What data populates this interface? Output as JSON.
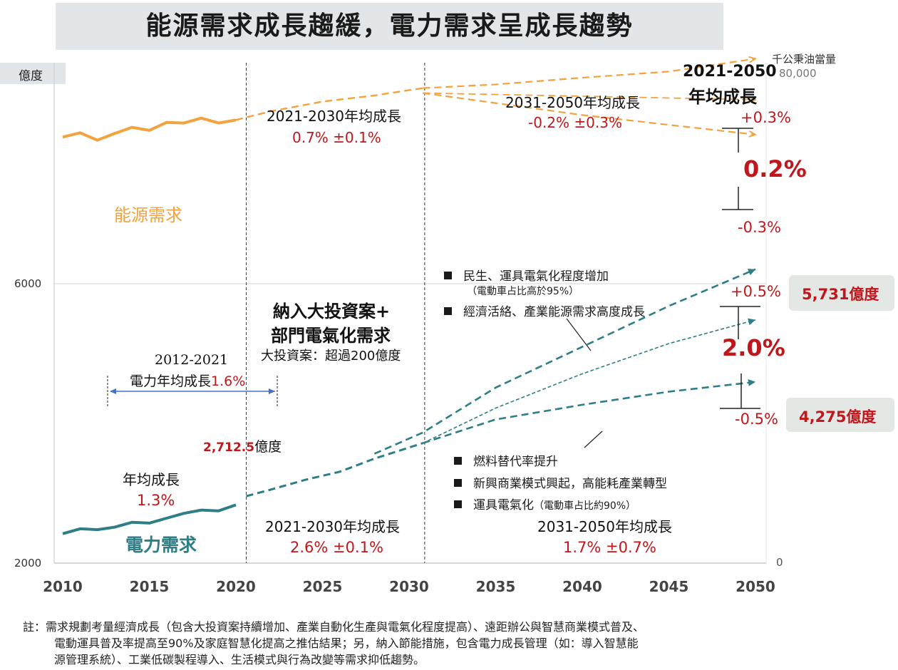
{
  "title": "能源需求成長趨緩，電力需求呈成長趨勢",
  "left_axis_unit": "億度",
  "right_axis_unit": "千公秉油當量",
  "colors": {
    "energy": "#f3a23d",
    "electricity": "#2e7e86",
    "highlight": "#c0171c",
    "callout_bg": "#e3e8e4"
  },
  "chart_data": {
    "type": "line",
    "x_ticks": [
      2010,
      2015,
      2020,
      2025,
      2030,
      2035,
      2040,
      2045,
      2050
    ],
    "xlim": [
      2010,
      2050
    ],
    "left_axis": {
      "label": "億度",
      "ylim": [
        2000,
        8000
      ],
      "tick_labels": [
        "2000",
        "6000"
      ]
    },
    "right_axis": {
      "label": "千公秉油當量",
      "ylim": [
        0,
        80000
      ],
      "tick_labels": [
        "0",
        "80,000"
      ]
    },
    "series": [
      {
        "name": "能源需求",
        "axis": "right",
        "historical": {
          "x": [
            2010,
            2011,
            2012,
            2013,
            2014,
            2015,
            2016,
            2017,
            2018,
            2019,
            2020
          ],
          "y": [
            69600,
            70300,
            69100,
            70200,
            71200,
            70700,
            72000,
            71900,
            72700,
            71900,
            72400
          ]
        },
        "projection_common": {
          "x": [
            2020,
            2022,
            2025,
            2028,
            2030.8
          ],
          "y": [
            72400,
            73800,
            75400,
            76400,
            77600
          ]
        },
        "projection_high": {
          "x": [
            2030.8,
            2035,
            2040,
            2045,
            2050
          ],
          "y": [
            77600,
            78200,
            79300,
            80300,
            82400
          ]
        },
        "projection_mid": {
          "x": [
            2030.8,
            2050
          ],
          "y": [
            76800,
            75700
          ]
        },
        "projection_low": {
          "x": [
            2030.8,
            2040,
            2050
          ],
          "y": [
            76800,
            73200,
            70000
          ]
        }
      },
      {
        "name": "電力需求",
        "axis": "left",
        "historical": {
          "x": [
            2010,
            2011,
            2012,
            2013,
            2014,
            2015,
            2016,
            2017,
            2018,
            2019,
            2020
          ],
          "y": [
            2360,
            2420,
            2410,
            2440,
            2500,
            2490,
            2550,
            2610,
            2650,
            2640,
            2712.5
          ]
        },
        "projection_common": {
          "x": [
            2020.6,
            2022,
            2024,
            2026,
            2028,
            2030.8
          ],
          "y": [
            2820,
            2900,
            3020,
            3120,
            3280,
            3470
          ]
        },
        "projection_high": {
          "x": [
            2028,
            2030.8,
            2035,
            2040,
            2045,
            2050
          ],
          "y": [
            3340,
            3600,
            4150,
            4650,
            5150,
            5600
          ]
        },
        "projection_mid": {
          "x": [
            2030.8,
            2035,
            2040,
            2045,
            2050
          ],
          "y": [
            3470,
            3900,
            4320,
            4690,
            4980
          ]
        },
        "projection_low": {
          "x": [
            2030.8,
            2035,
            2040,
            2045,
            2050
          ],
          "y": [
            3470,
            3760,
            3940,
            4100,
            4220
          ]
        }
      }
    ],
    "vlines": [
      2020.6,
      2030.9
    ]
  },
  "annotations": {
    "energy_label": "能源需求",
    "electricity_label": "電力需求",
    "energy_2021_2030_label": "2021-2030年均成長",
    "energy_2021_2030_value": "0.7% ±0.1%",
    "energy_2031_2050_label": "2031-2050年均成長",
    "energy_2031_2050_value": "-0.2% ±0.3%",
    "avg_growth_header_1": "2021-2050",
    "avg_growth_header_2": "年均成長",
    "energy_upper": "+0.3%",
    "energy_center": "0.2%",
    "energy_lower": "-0.3%",
    "elec_bullets_upper": [
      "民生、運具電氣化程度增加",
      "（電動車占比高於95%）",
      "經濟活絡、產業能源需求高度成長"
    ],
    "big_investment_1": "納入大投資案+",
    "big_investment_2": "部門電氣化需求",
    "big_investment_3": "大投資案：超過200億度",
    "hist_range_label": "2012-2021",
    "hist_growth_label": "電力年均成長",
    "hist_growth_value": "1.6%",
    "value_2020_number": "2,712.5",
    "value_2020_unit": "億度",
    "annual_growth_label": "年均成長",
    "annual_growth_value": "1.3%",
    "elec_2021_2030_label": "2021-2030年均成長",
    "elec_2021_2030_value": "2.6% ±0.1%",
    "elec_2031_2050_label": "2031-2050年均成長",
    "elec_2031_2050_value": "1.7% ±0.7%",
    "elec_upper": "+0.5%",
    "elec_center": "2.0%",
    "elec_lower": "-0.5%",
    "elec_high_value": "5,731億度",
    "elec_low_value": "4,275億度",
    "elec_bullets_lower": [
      "燃料替代率提升",
      "新興商業模式興起，高能耗產業轉型",
      "運具電氣化"
    ],
    "elec_bullet_lower_note": "（電動車占比約90%）"
  },
  "note_lines": [
    "註：需求規劃考量經濟成長（包含大投資案持續增加、產業自動化生產與電氣化程度提高）、遠距辦公與智慧商業模式普及、",
    "電動運具普及率提高至90%及家庭智慧化提高之推估結果；另，納入節能措施，包含電力成長管理（如：導入智慧能",
    "源管理系統）、工業低碳製程導入、生活模式與行為改變等需求抑低趨勢。"
  ]
}
